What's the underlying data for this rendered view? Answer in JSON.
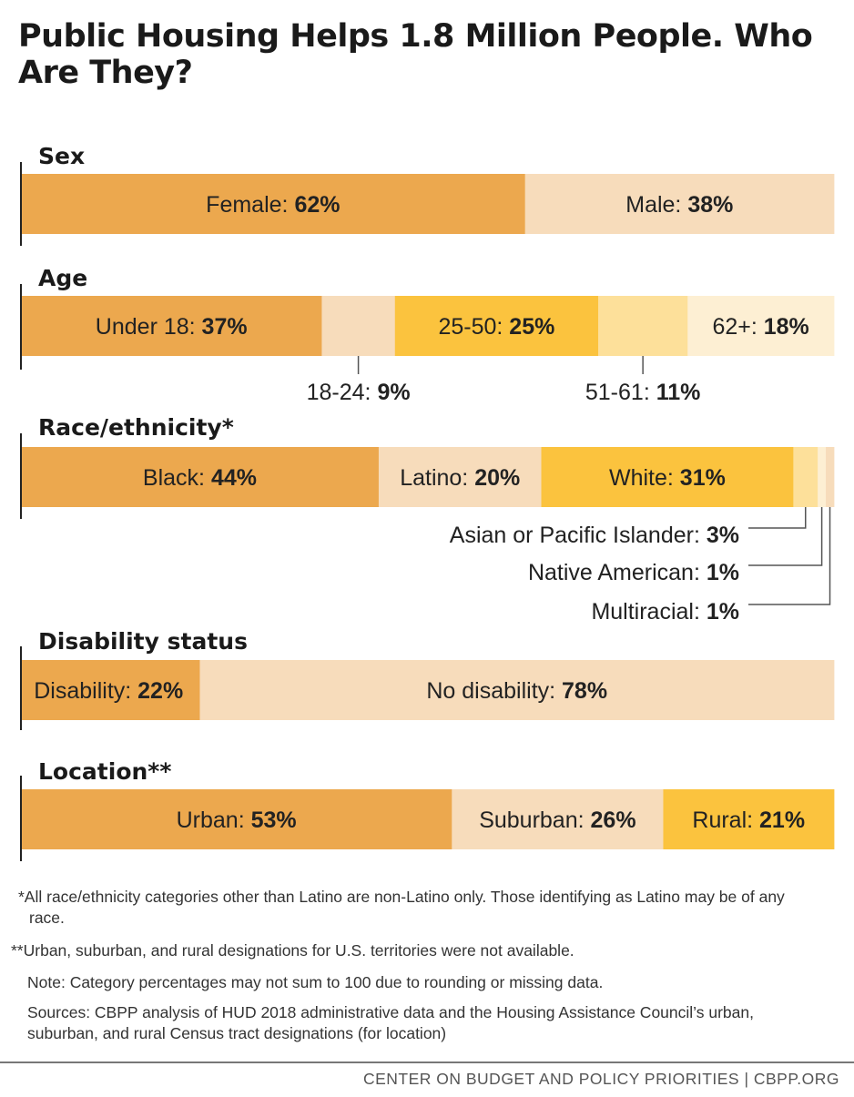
{
  "title": "Public Housing Helps 1.8 Million People. Who Are They?",
  "colors": {
    "dark_orange": "#eca84e",
    "light_peach": "#f7dcbb",
    "gold": "#fbc33e",
    "light_gold": "#fde09a",
    "cream": "#fdefd3",
    "axis": "#222222",
    "leader": "#555555"
  },
  "chart_data": {
    "type": "bar",
    "orientation": "horizontal-stacked-100",
    "groups": [
      {
        "title": "Sex",
        "segments": [
          {
            "label": "Female:",
            "value": 62,
            "display": "62%",
            "color": "dark_orange"
          },
          {
            "label": "Male:",
            "value": 38,
            "display": "38%",
            "color": "light_peach"
          }
        ]
      },
      {
        "title": "Age",
        "segments": [
          {
            "label": "Under 18:",
            "value": 37,
            "display": "37%",
            "color": "dark_orange"
          },
          {
            "label": "18-24:",
            "value": 9,
            "display": "9%",
            "color": "light_peach",
            "outside": true
          },
          {
            "label": "25-50:",
            "value": 25,
            "display": "25%",
            "color": "gold"
          },
          {
            "label": "51-61:",
            "value": 11,
            "display": "11%",
            "color": "light_gold",
            "outside": true
          },
          {
            "label": "62+:",
            "value": 18,
            "display": "18%",
            "color": "cream"
          }
        ]
      },
      {
        "title": "Race/ethnicity*",
        "segments": [
          {
            "label": "Black:",
            "value": 44,
            "display": "44%",
            "color": "dark_orange"
          },
          {
            "label": "Latino:",
            "value": 20,
            "display": "20%",
            "color": "light_peach"
          },
          {
            "label": "White:",
            "value": 31,
            "display": "31%",
            "color": "gold"
          },
          {
            "label": "Asian or Pacific Islander:",
            "value": 3,
            "display": "3%",
            "color": "light_gold",
            "callout": true
          },
          {
            "label": "Native American:",
            "value": 1,
            "display": "1%",
            "color": "cream",
            "callout": true
          },
          {
            "label": "Multiracial:",
            "value": 1,
            "display": "1%",
            "color": "light_peach",
            "callout": true
          }
        ]
      },
      {
        "title": "Disability status",
        "segments": [
          {
            "label": "Disability:",
            "value": 22,
            "display": "22%",
            "color": "dark_orange"
          },
          {
            "label": "No disability:",
            "value": 78,
            "display": "78%",
            "color": "light_peach"
          }
        ]
      },
      {
        "title": "Location**",
        "segments": [
          {
            "label": "Urban:",
            "value": 53,
            "display": "53%",
            "color": "dark_orange"
          },
          {
            "label": "Suburban:",
            "value": 26,
            "display": "26%",
            "color": "light_peach"
          },
          {
            "label": "Rural:",
            "value": 21,
            "display": "21%",
            "color": "gold"
          }
        ]
      }
    ],
    "xlim": [
      0,
      100
    ]
  },
  "footnotes": {
    "race": "*All race/ethnicity categories other than Latino are non-Latino only. Those identifying as Latino may be of any race.",
    "location": "**Urban, suburban, and rural designations for U.S. territories were not available.",
    "note": "Note: Category percentages may not sum to 100 due to rounding or missing data.",
    "sources": "Sources: CBPP analysis of HUD 2018 administrative data and the Housing Assistance Council’s urban, suburban, and rural Census tract designations (for location)"
  },
  "credit": "CENTER ON BUDGET AND POLICY PRIORITIES | CBPP.ORG"
}
